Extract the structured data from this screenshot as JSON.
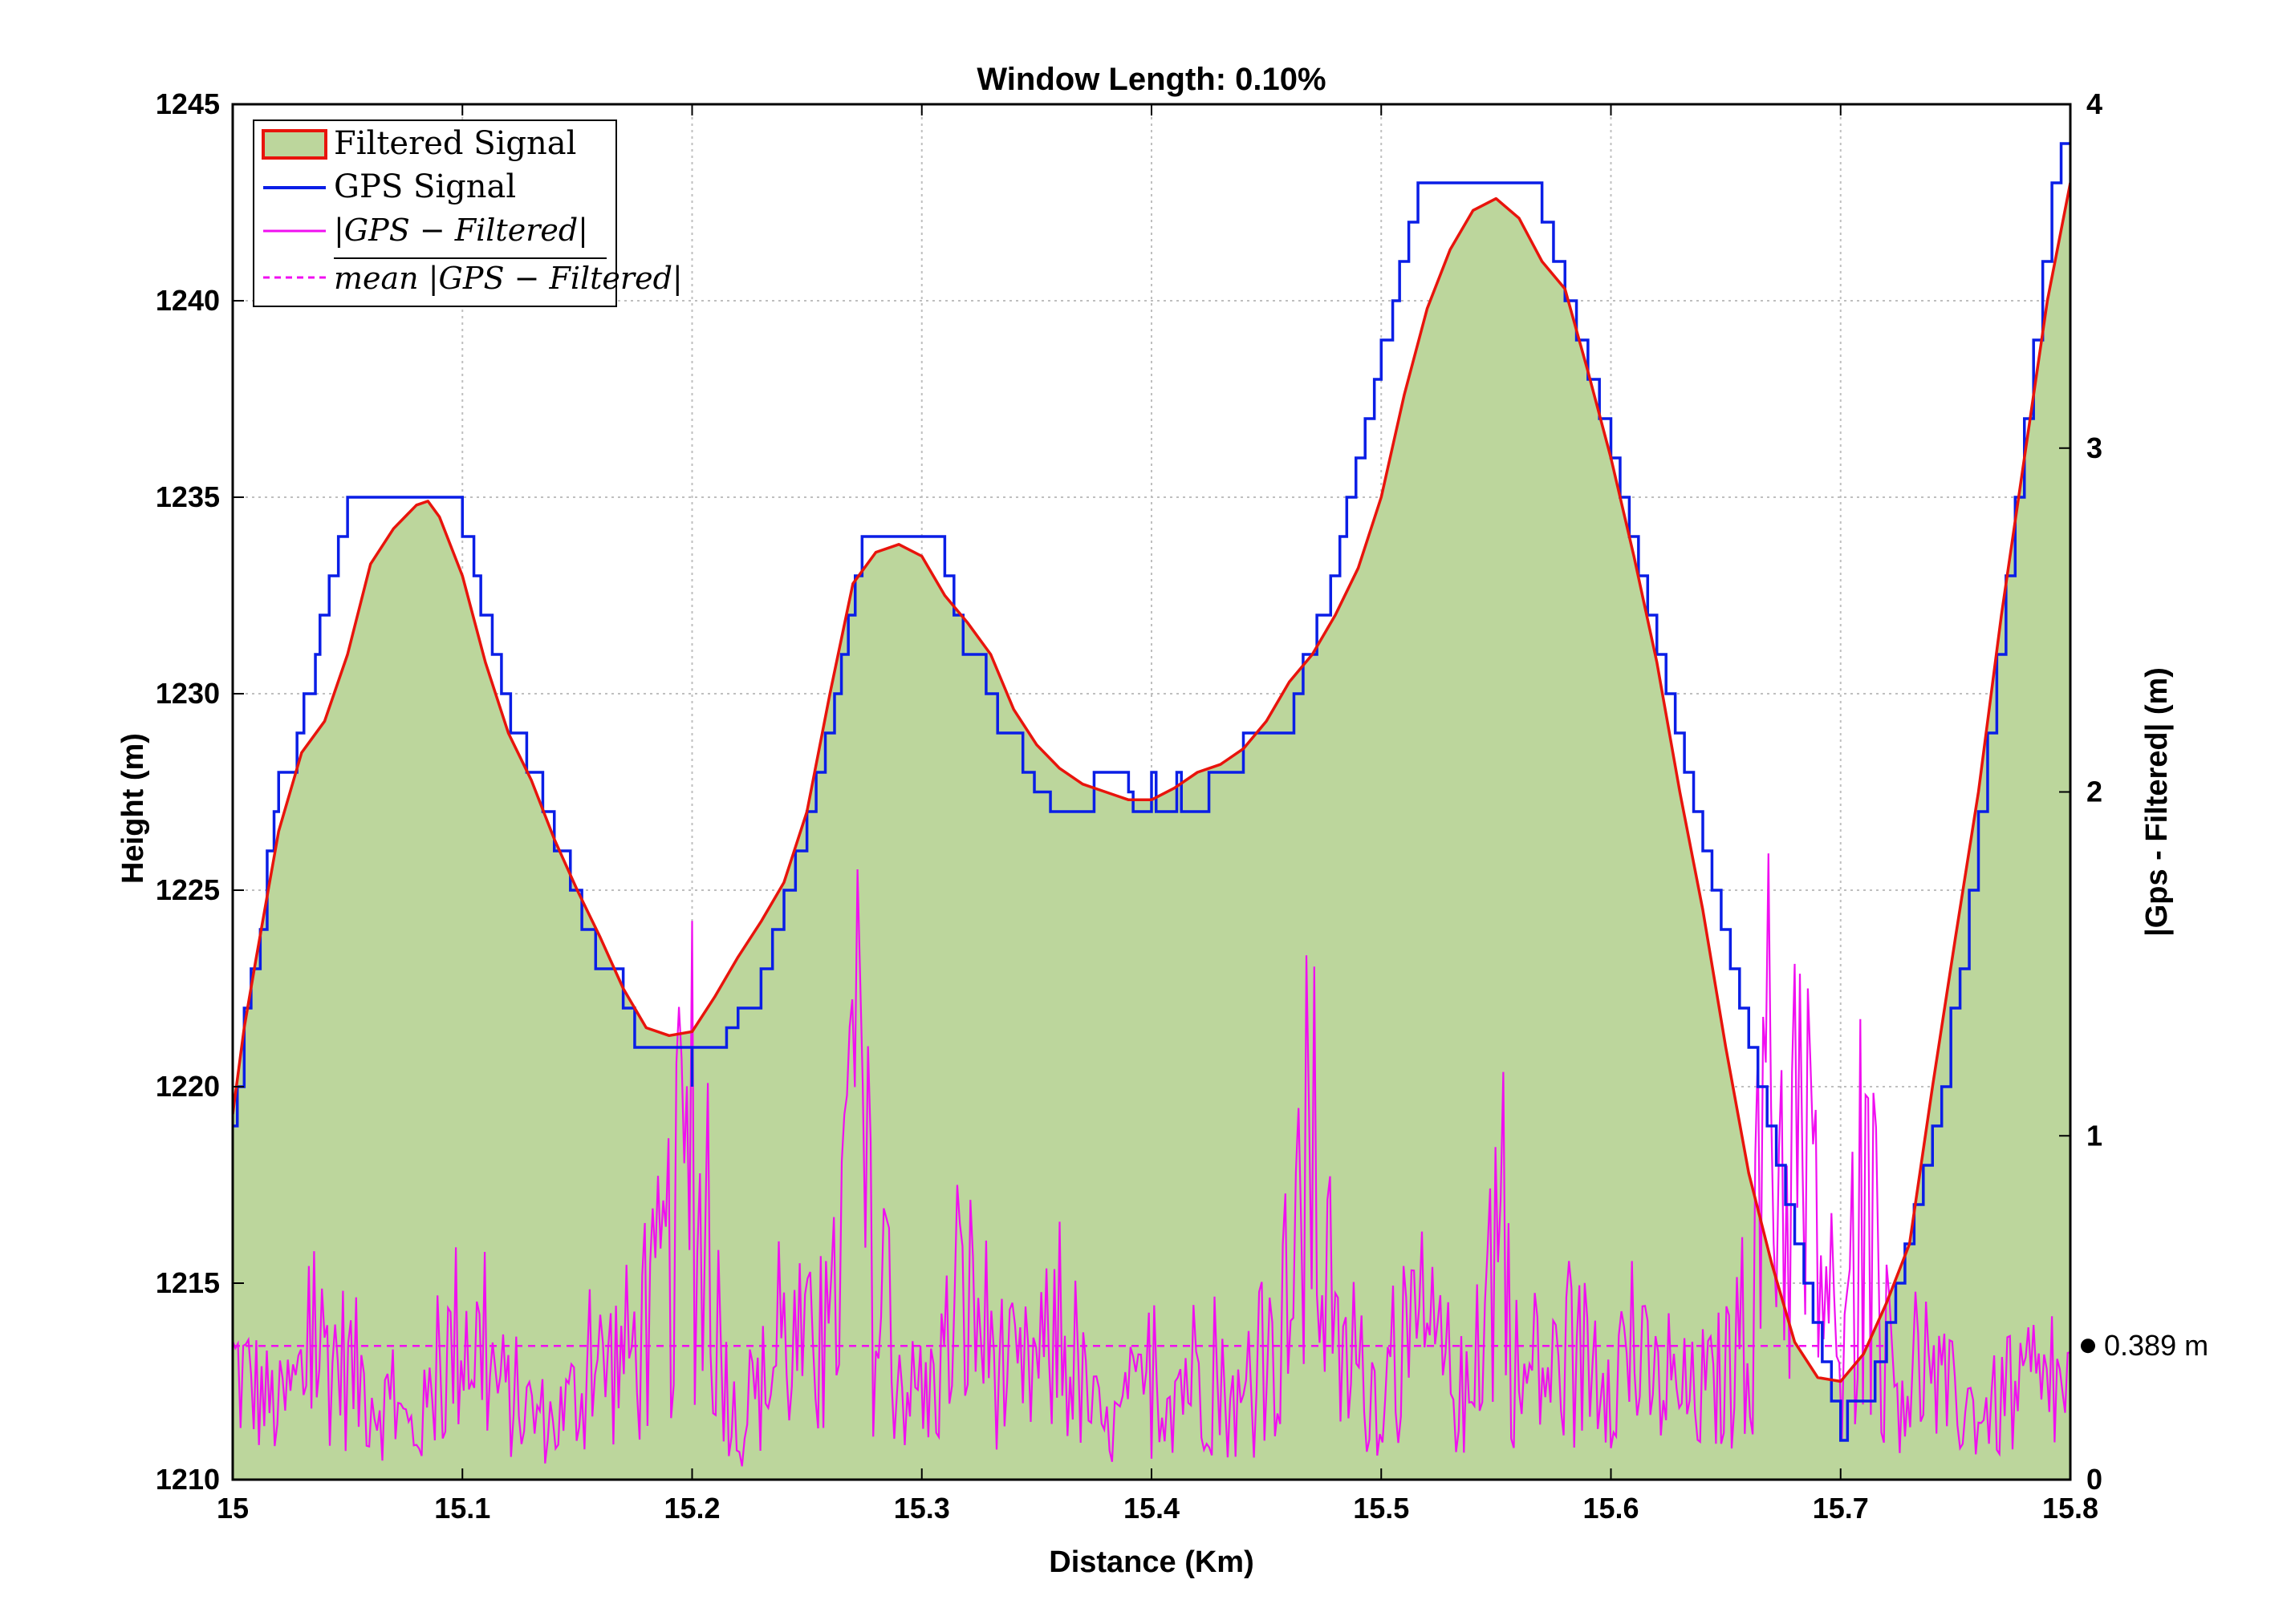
{
  "chart_data": {
    "type": "line",
    "title": "Window Length: 0.10%",
    "xlabel": "Distance (Km)",
    "ylabel": "Height (m)",
    "y2label": "|Gps - Filtered| (m)",
    "xlim": [
      15,
      15.8
    ],
    "ylim": [
      1210,
      1245
    ],
    "y2lim": [
      0,
      4
    ],
    "x_ticks": [
      "15",
      "15.1",
      "15.2",
      "15.3",
      "15.4",
      "15.5",
      "15.6",
      "15.7",
      "15.8"
    ],
    "y_ticks": [
      "1210",
      "1215",
      "1220",
      "1225",
      "1230",
      "1235",
      "1240",
      "1245"
    ],
    "y2_ticks": [
      "0",
      "1",
      "2",
      "3",
      "4"
    ],
    "grid": true,
    "legend": {
      "location": "top-left",
      "entries": [
        "Filtered Signal",
        "GPS Signal",
        "|GPS − Filtered|",
        "mean |GPS − Filtered|"
      ]
    },
    "annotation": {
      "text": "0.389 m",
      "value": 0.389,
      "axis": "right"
    },
    "colors": {
      "fill": "#bcd69c",
      "filtered": "#e8140c",
      "gps": "#0a1ee6",
      "diff": "#f00ff0",
      "grid": "#bfbfbf"
    },
    "series": [
      {
        "name": "Filtered Signal",
        "style": "filled-area",
        "x": [
          15.0,
          15.005,
          15.01,
          15.02,
          15.03,
          15.04,
          15.05,
          15.06,
          15.07,
          15.08,
          15.085,
          15.09,
          15.1,
          15.11,
          15.12,
          15.13,
          15.14,
          15.15,
          15.16,
          15.17,
          15.18,
          15.19,
          15.2,
          15.21,
          15.22,
          15.23,
          15.24,
          15.25,
          15.26,
          15.27,
          15.28,
          15.29,
          15.3,
          15.31,
          15.32,
          15.33,
          15.34,
          15.35,
          15.36,
          15.37,
          15.38,
          15.39,
          15.4,
          15.41,
          15.42,
          15.43,
          15.44,
          15.45,
          15.46,
          15.47,
          15.48,
          15.49,
          15.5,
          15.51,
          15.52,
          15.53,
          15.54,
          15.55,
          15.56,
          15.57,
          15.58,
          15.59,
          15.6,
          15.61,
          15.62,
          15.63,
          15.64,
          15.65,
          15.66,
          15.67,
          15.68,
          15.69,
          15.7,
          15.71,
          15.72,
          15.73,
          15.74,
          15.75,
          15.76,
          15.77,
          15.78,
          15.79,
          15.8
        ],
        "y": [
          1219.3,
          1221.5,
          1223.2,
          1226.5,
          1228.5,
          1229.3,
          1231.0,
          1233.3,
          1234.2,
          1234.8,
          1234.9,
          1234.5,
          1233.0,
          1230.8,
          1229.0,
          1227.8,
          1226.3,
          1225.0,
          1223.8,
          1222.5,
          1221.5,
          1221.3,
          1221.4,
          1222.3,
          1223.3,
          1224.2,
          1225.2,
          1227.0,
          1230.0,
          1232.8,
          1233.6,
          1233.8,
          1233.5,
          1232.5,
          1231.8,
          1231.0,
          1229.6,
          1228.7,
          1228.1,
          1227.7,
          1227.5,
          1227.3,
          1227.3,
          1227.6,
          1228.0,
          1228.2,
          1228.6,
          1229.3,
          1230.3,
          1231.0,
          1232.0,
          1233.2,
          1235.0,
          1237.6,
          1239.8,
          1241.3,
          1242.3,
          1242.6,
          1242.1,
          1241.0,
          1240.3,
          1238.2,
          1236.0,
          1233.5,
          1230.8,
          1227.5,
          1224.5,
          1221.0,
          1217.8,
          1215.5,
          1213.5,
          1212.6,
          1212.5,
          1213.2,
          1214.5,
          1216.0,
          1220.0,
          1223.8,
          1227.5,
          1232.0,
          1236.0,
          1240.0,
          1243.0
        ]
      },
      {
        "name": "GPS Signal",
        "style": "step",
        "x": [
          15.0,
          15.002,
          15.005,
          15.008,
          15.012,
          15.015,
          15.018,
          15.02,
          15.028,
          15.031,
          15.036,
          15.038,
          15.042,
          15.046,
          15.05,
          15.053,
          15.056,
          15.06,
          15.064,
          15.1,
          15.105,
          15.108,
          15.113,
          15.117,
          15.121,
          15.128,
          15.135,
          15.14,
          15.147,
          15.152,
          15.158,
          15.17,
          15.175,
          15.18,
          15.195,
          15.2,
          15.2,
          15.205,
          15.215,
          15.22,
          15.23,
          15.235,
          15.24,
          15.245,
          15.25,
          15.254,
          15.258,
          15.262,
          15.265,
          15.268,
          15.271,
          15.274,
          15.278,
          15.31,
          15.314,
          15.318,
          15.328,
          15.333,
          15.344,
          15.349,
          15.356,
          15.36,
          15.37,
          15.375,
          15.39,
          15.392,
          15.4,
          15.402,
          15.411,
          15.413,
          15.425,
          15.43,
          15.44,
          15.443,
          15.462,
          15.466,
          15.472,
          15.478,
          15.482,
          15.485,
          15.489,
          15.493,
          15.497,
          15.5,
          15.505,
          15.508,
          15.512,
          15.516,
          15.52,
          15.524,
          15.528,
          15.532,
          15.536,
          15.57,
          15.575,
          15.58,
          15.585,
          15.59,
          15.595,
          15.6,
          15.604,
          15.608,
          15.612,
          15.616,
          15.62,
          15.624,
          15.628,
          15.632,
          15.636,
          15.64,
          15.644,
          15.648,
          15.652,
          15.656,
          15.66,
          15.664,
          15.668,
          15.672,
          15.676,
          15.68,
          15.684,
          15.688,
          15.692,
          15.696,
          15.7,
          15.703,
          15.706,
          15.71,
          15.715,
          15.72,
          15.724,
          15.728,
          15.732,
          15.736,
          15.74,
          15.744,
          15.748,
          15.752,
          15.756,
          15.76,
          15.764,
          15.768,
          15.772,
          15.776,
          15.78,
          15.784,
          15.788,
          15.792,
          15.796,
          15.8
        ],
        "y": [
          1219.0,
          1220.0,
          1222.0,
          1223.0,
          1224.0,
          1226.0,
          1227.0,
          1228.0,
          1229.0,
          1230.0,
          1231.0,
          1232.0,
          1233.0,
          1234.0,
          1235.0,
          1235.0,
          1235.0,
          1235.0,
          1235.0,
          1234.0,
          1233.0,
          1232.0,
          1231.0,
          1230.0,
          1229.0,
          1228.0,
          1227.0,
          1226.0,
          1225.0,
          1224.0,
          1223.0,
          1222.0,
          1221.0,
          1221.0,
          1221.0,
          1220.0,
          1221.0,
          1221.0,
          1221.5,
          1222.0,
          1223.0,
          1224.0,
          1225.0,
          1226.0,
          1227.0,
          1228.0,
          1229.0,
          1230.0,
          1231.0,
          1232.0,
          1233.0,
          1234.0,
          1234.0,
          1233.0,
          1232.0,
          1231.0,
          1230.0,
          1229.0,
          1228.0,
          1227.5,
          1227.0,
          1227.0,
          1227.0,
          1228.0,
          1227.5,
          1227.0,
          1228.0,
          1227.0,
          1228.0,
          1227.0,
          1228.0,
          1228.0,
          1229.0,
          1229.0,
          1230.0,
          1231.0,
          1232.0,
          1233.0,
          1234.0,
          1235.0,
          1236.0,
          1237.0,
          1238.0,
          1239.0,
          1240.0,
          1241.0,
          1242.0,
          1243.0,
          1243.0,
          1243.0,
          1243.0,
          1243.0,
          1243.0,
          1242.0,
          1241.0,
          1240.0,
          1239.0,
          1238.0,
          1237.0,
          1236.0,
          1235.0,
          1234.0,
          1233.0,
          1232.0,
          1231.0,
          1230.0,
          1229.0,
          1228.0,
          1227.0,
          1226.0,
          1225.0,
          1224.0,
          1223.0,
          1222.0,
          1221.0,
          1220.0,
          1219.0,
          1218.0,
          1217.0,
          1216.0,
          1215.0,
          1214.0,
          1213.0,
          1212.0,
          1211.0,
          1212.0,
          1212.0,
          1212.0,
          1213.0,
          1214.0,
          1215.0,
          1216.0,
          1217.0,
          1218.0,
          1219.0,
          1220.0,
          1222.0,
          1223.0,
          1225.0,
          1227.0,
          1229.0,
          1231.0,
          1233.0,
          1235.0,
          1237.0,
          1239.0,
          1241.0,
          1243.0,
          1244.0,
          1244.0
        ]
      },
      {
        "name": "|GPS − Filtered|",
        "axis": "right",
        "style": "noisy-line",
        "x": [
          15.0,
          15.02,
          15.04,
          15.06,
          15.08,
          15.1,
          15.12,
          15.14,
          15.16,
          15.18,
          15.2,
          15.22,
          15.24,
          15.26,
          15.27,
          15.28,
          15.3,
          15.32,
          15.34,
          15.36,
          15.38,
          15.4,
          15.42,
          15.44,
          15.46,
          15.47,
          15.48,
          15.5,
          15.52,
          15.54,
          15.55,
          15.56,
          15.58,
          15.6,
          15.62,
          15.64,
          15.66,
          15.67,
          15.68,
          15.69,
          15.7,
          15.71,
          15.72,
          15.74,
          15.76,
          15.78,
          15.8
        ],
        "y": [
          0.5,
          0.3,
          0.6,
          0.4,
          0.2,
          0.7,
          0.35,
          0.25,
          0.5,
          0.6,
          1.3,
          0.2,
          0.6,
          0.5,
          1.6,
          0.7,
          0.3,
          0.8,
          0.4,
          0.6,
          0.2,
          0.4,
          0.5,
          0.3,
          0.7,
          1.4,
          0.5,
          0.4,
          0.6,
          0.3,
          1.2,
          0.4,
          0.5,
          0.6,
          0.4,
          0.35,
          0.6,
          1.6,
          1.2,
          1.1,
          0.3,
          1.2,
          0.5,
          0.4,
          0.3,
          0.35,
          0.4
        ]
      },
      {
        "name": "mean |GPS − Filtered|",
        "axis": "right",
        "style": "dashed",
        "x": [
          15.0,
          15.72
        ],
        "y": [
          0.389,
          0.389
        ]
      }
    ]
  }
}
